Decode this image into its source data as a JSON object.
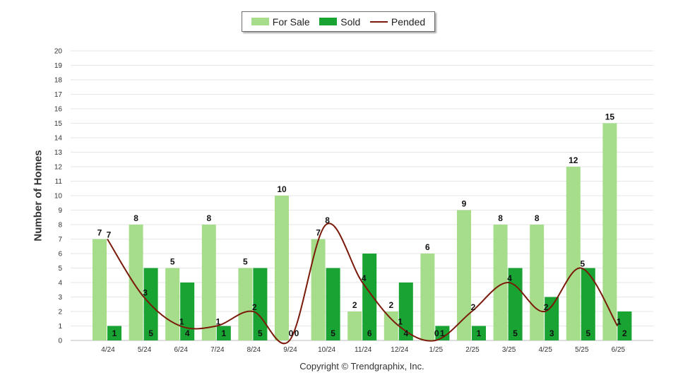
{
  "chart_data": {
    "type": "bar",
    "ylabel": "Number of Homes",
    "xlabel": "",
    "ylim": [
      0,
      20
    ],
    "yticks": [
      0,
      1,
      2,
      3,
      4,
      5,
      6,
      7,
      8,
      9,
      10,
      11,
      12,
      13,
      14,
      15,
      16,
      17,
      18,
      19,
      20
    ],
    "grid": true,
    "legend_position": "top-center",
    "categories": [
      "4/24",
      "5/24",
      "6/24",
      "7/24",
      "8/24",
      "9/24",
      "10/24",
      "11/24",
      "12/24",
      "1/25",
      "2/25",
      "3/25",
      "4/25",
      "5/25",
      "6/25"
    ],
    "series": [
      {
        "name": "For Sale",
        "type": "bar",
        "color": "#a6dd8b",
        "values": [
          7,
          8,
          5,
          8,
          5,
          10,
          7,
          2,
          2,
          6,
          9,
          8,
          8,
          12,
          15
        ]
      },
      {
        "name": "Sold",
        "type": "bar",
        "color": "#18a332",
        "values": [
          1,
          5,
          4,
          1,
          5,
          0,
          5,
          6,
          4,
          1,
          1,
          5,
          3,
          5,
          2
        ]
      },
      {
        "name": "Pended",
        "type": "line",
        "color": "#7a1a0a",
        "values": [
          7,
          3,
          1,
          1,
          2,
          0,
          8,
          4,
          1,
          0,
          2,
          4,
          2,
          5,
          1
        ]
      }
    ]
  },
  "copyright": "Copyright © Trendgraphix, Inc."
}
